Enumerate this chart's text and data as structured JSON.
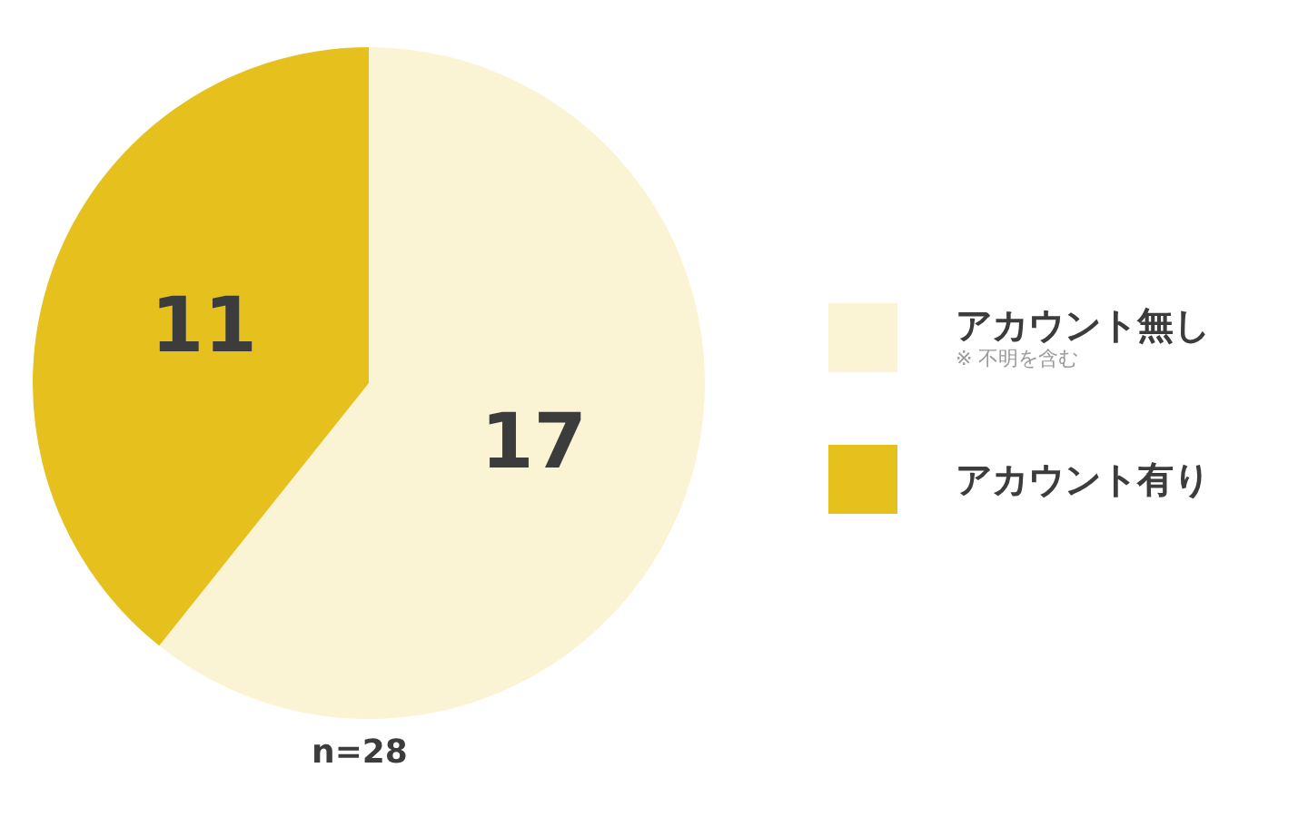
{
  "chart_data": {
    "type": "pie",
    "categories": [
      "アカウント無し",
      "アカウント有り"
    ],
    "values": [
      17,
      11
    ],
    "colors": [
      "#faf3d4",
      "#e6c01c"
    ],
    "data_labels": true,
    "legend": "right",
    "annotations": [
      "n=28",
      "※ 不明を含む"
    ]
  }
}
